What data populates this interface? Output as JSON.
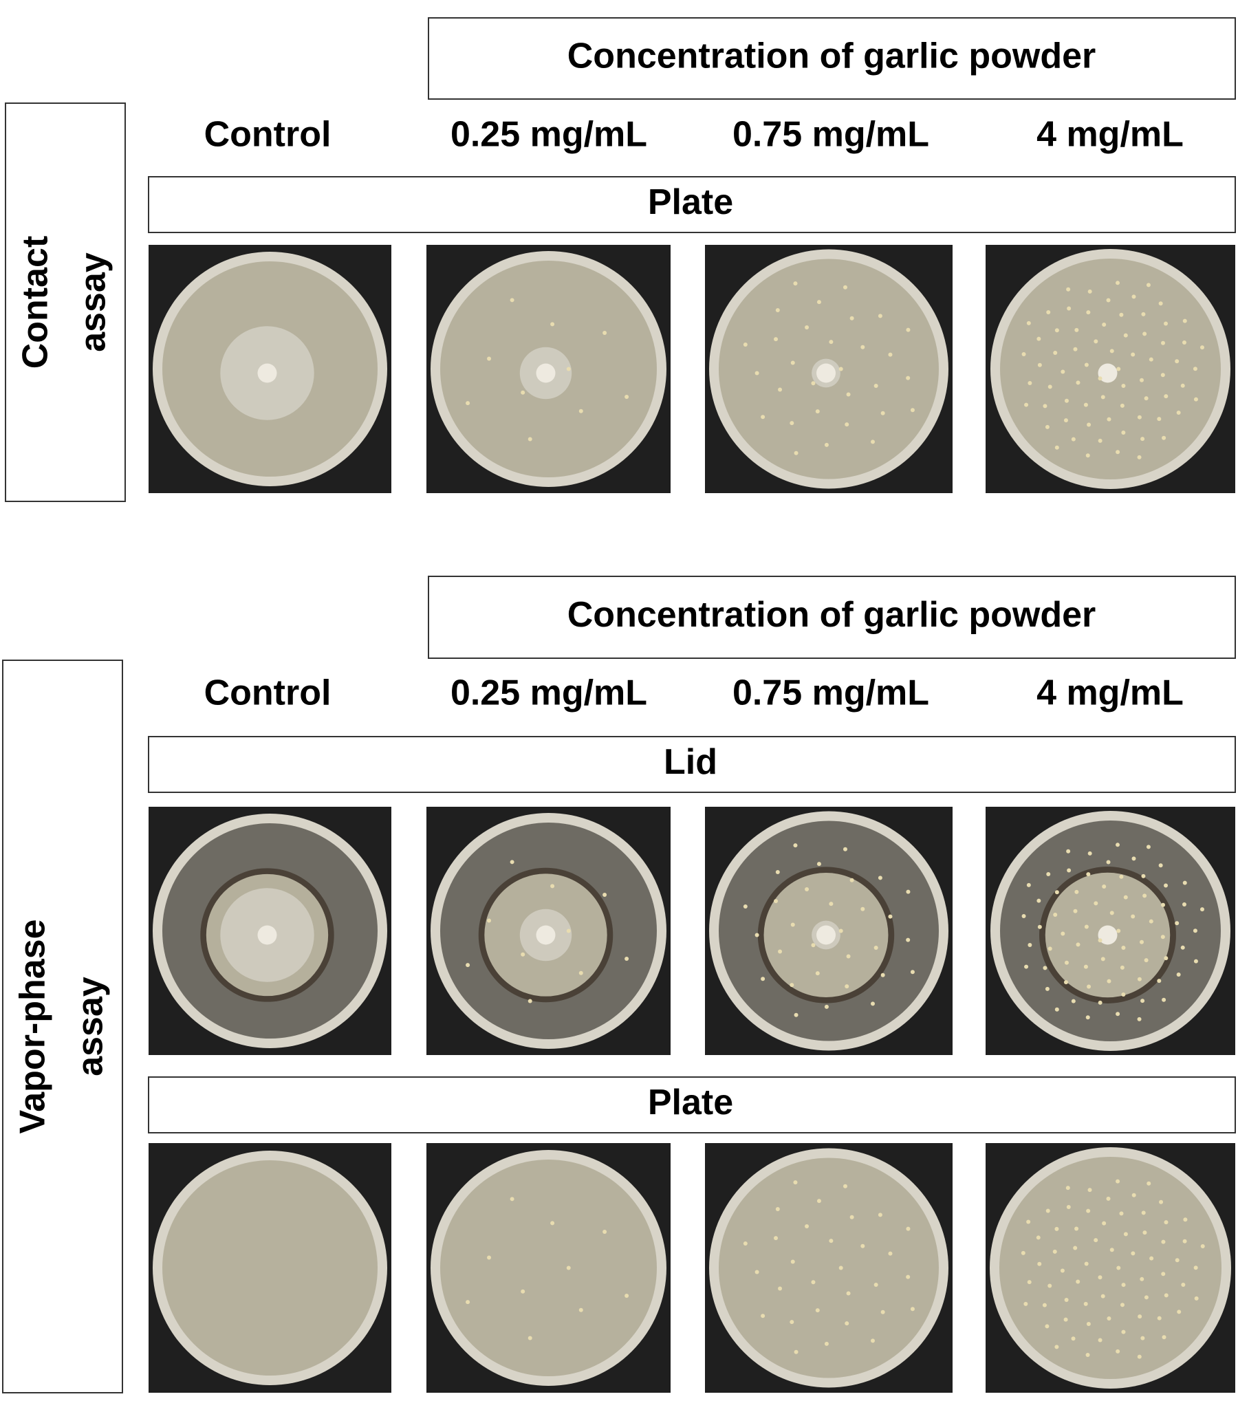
{
  "sections": [
    {
      "assay_label": [
        "Contact",
        "assay"
      ],
      "header": "Concentration of garlic powder",
      "columns": [
        "Control",
        "0.25 mg/mL",
        "0.75 mg/mL",
        "4 mg/mL"
      ],
      "rows": [
        {
          "label": "Plate"
        }
      ]
    },
    {
      "assay_label": [
        "Vapor-phase",
        "assay"
      ],
      "header": "Concentration of garlic powder",
      "columns": [
        "Control",
        "0.25 mg/mL",
        "0.75 mg/mL",
        "4 mg/mL"
      ],
      "rows": [
        {
          "label": "Lid"
        },
        {
          "label": "Plate"
        }
      ]
    }
  ]
}
